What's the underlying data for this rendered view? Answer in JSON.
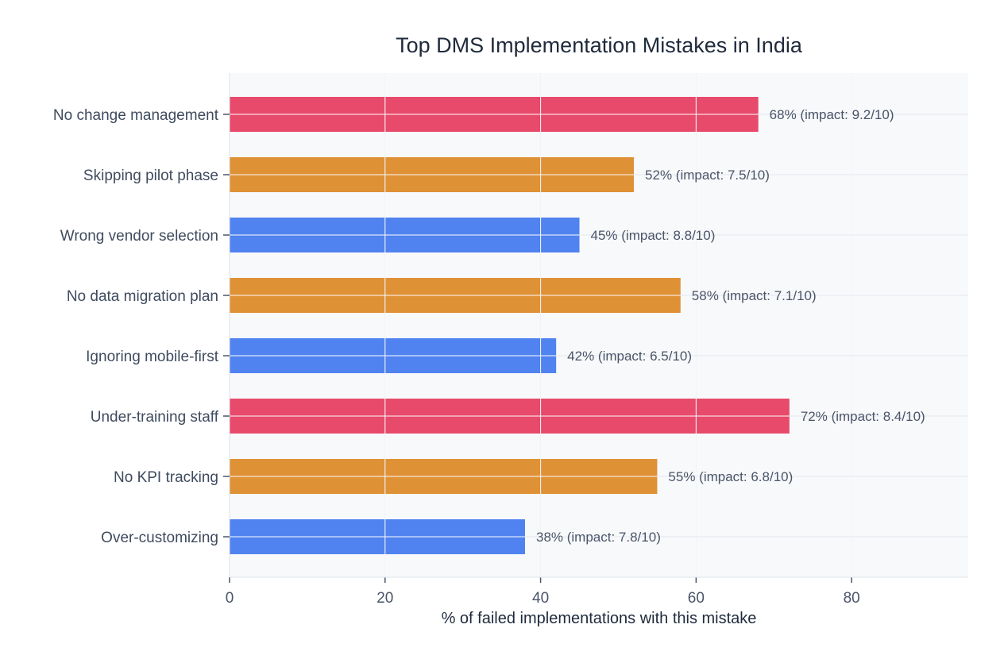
{
  "chart_data": {
    "type": "bar",
    "orientation": "horizontal",
    "title": "Top DMS Implementation Mistakes in India",
    "xlabel": "% of failed implementations with this mistake",
    "ylabel": "",
    "xlim": [
      0,
      95
    ],
    "xticks": [
      0,
      20,
      40,
      60,
      80
    ],
    "grid": true,
    "categories": [
      "No change management",
      "Skipping pilot phase",
      "Wrong vendor selection",
      "No data migration plan",
      "Ignoring mobile-first",
      "Under-training staff",
      "No KPI tracking",
      "Over-customizing"
    ],
    "values": [
      68,
      52,
      45,
      58,
      42,
      72,
      55,
      38
    ],
    "impact": [
      9.2,
      7.5,
      8.8,
      7.1,
      6.5,
      8.4,
      6.8,
      7.8
    ],
    "data_labels": [
      "68%  (impact: 9.2/10)",
      "52%  (impact: 7.5/10)",
      "45%  (impact: 8.8/10)",
      "58%  (impact: 7.1/10)",
      "42%  (impact: 6.5/10)",
      "72%  (impact: 8.4/10)",
      "55%  (impact: 6.8/10)",
      "38%  (impact: 7.8/10)"
    ],
    "colors": [
      "#E84A6B",
      "#DF9136",
      "#5083EF",
      "#DF9136",
      "#5083EF",
      "#E84A6B",
      "#DF9136",
      "#5083EF"
    ],
    "plot_background": "#F8F9FB",
    "grid_color": "#E3E7EF"
  }
}
